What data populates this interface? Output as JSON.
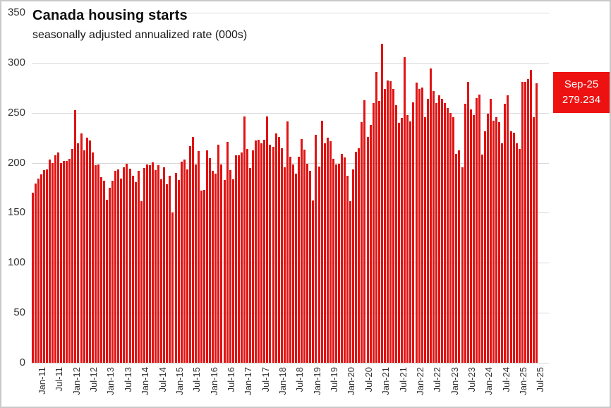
{
  "chart_data": {
    "type": "bar",
    "title": "Canada housing starts",
    "subtitle": "seasonally adjusted annualized rate (000s)",
    "frequency": "monthly",
    "start_month": "Jan-11",
    "end_month": "Sep-25",
    "values": [
      170.4,
      178.9,
      184.2,
      188.1,
      192.7,
      193.1,
      203.4,
      199.8,
      207.6,
      210.0,
      199.6,
      201.9,
      201.7,
      203.6,
      214.0,
      252.5,
      219.2,
      229.1,
      212.6,
      224.8,
      222.1,
      210.2,
      197.4,
      198.5,
      185.4,
      182.1,
      163.3,
      174.9,
      182.4,
      191.8,
      193.1,
      184.2,
      195.4,
      199.1,
      194.1,
      187.1,
      180.4,
      191.7,
      161.9,
      194.8,
      198.2,
      197.8,
      200.1,
      192.3,
      197.3,
      183.2,
      195.2,
      178.8,
      187.0,
      150.1,
      189.7,
      183.1,
      201.4,
      202.9,
      193.2,
      216.8,
      225.9,
      198.1,
      211.6,
      172.0,
      172.9,
      212.4,
      204.3,
      191.9,
      188.9,
      218.3,
      198.4,
      182.7,
      220.6,
      192.9,
      183.8,
      207.4,
      207.2,
      210.3,
      246.2,
      213.7,
      194.9,
      212.5,
      222.3,
      223.2,
      219.5,
      222.8,
      246.6,
      218.3,
      216.2,
      229.4,
      225.5,
      214.4,
      195.6,
      241.3,
      206.3,
      198.2,
      188.9,
      205.9,
      223.7,
      213.4,
      199.3,
      191.9,
      162.4,
      227.7,
      196.0,
      241.7,
      219.3,
      224.9,
      221.5,
      203.7,
      198.1,
      199.2,
      209.1,
      205.3,
      186.9,
      161.8,
      193.4,
      210.9,
      214.3,
      240.9,
      262.7,
      226.1,
      237.7,
      260.0,
      290.8,
      261.9,
      318.9,
      273.6,
      282.3,
      281.8,
      273.7,
      257.6,
      239.6,
      244.7,
      305.3,
      247.8,
      241.2,
      260.7,
      280.1,
      273.6,
      275.2,
      245.9,
      264.2,
      294.2,
      272.0,
      259.6,
      267.1,
      263.9,
      259.8,
      254.8,
      250.1,
      245.6,
      209.0,
      212.6,
      195.7,
      258.9,
      281.1,
      253.4,
      248.0,
      264.8,
      268.2,
      208.2,
      231.6,
      248.8,
      263.7,
      241.9,
      245.8,
      240.5,
      219.6,
      258.9,
      267.3,
      231.2,
      229.8,
      219.2,
      214.0,
      280.8,
      280.6,
      283.7,
      293.1,
      245.8,
      279.234
    ],
    "x_tick_every": 6,
    "x_tick_labels": [
      "Jan-11",
      "Jul-11",
      "Jan-12",
      "Jul-12",
      "Jan-13",
      "Jul-13",
      "Jan-14",
      "Jul-14",
      "Jan-15",
      "Jul-15",
      "Jan-16",
      "Jul-16",
      "Jan-17",
      "Jul-17",
      "Jan-18",
      "Jul-18",
      "Jan-19",
      "Jul-19",
      "Jan-20",
      "Jul-20",
      "Jan-21",
      "Jul-21",
      "Jan-22",
      "Jul-22",
      "Jan-23",
      "Jul-23",
      "Jan-24",
      "Jul-24",
      "Jan-25",
      "Jul-25"
    ],
    "y_ticks": [
      0,
      50,
      100,
      150,
      200,
      250,
      300,
      350
    ],
    "ylim": [
      0,
      350
    ],
    "grid": "horizontal",
    "legend": "none",
    "bar_color": "#e01414",
    "grid_color": "#d9d9d9",
    "callout": {
      "label": "Sep-25",
      "value": "279.234",
      "bg": "#ee1111",
      "text_color": "#ffffff"
    }
  }
}
